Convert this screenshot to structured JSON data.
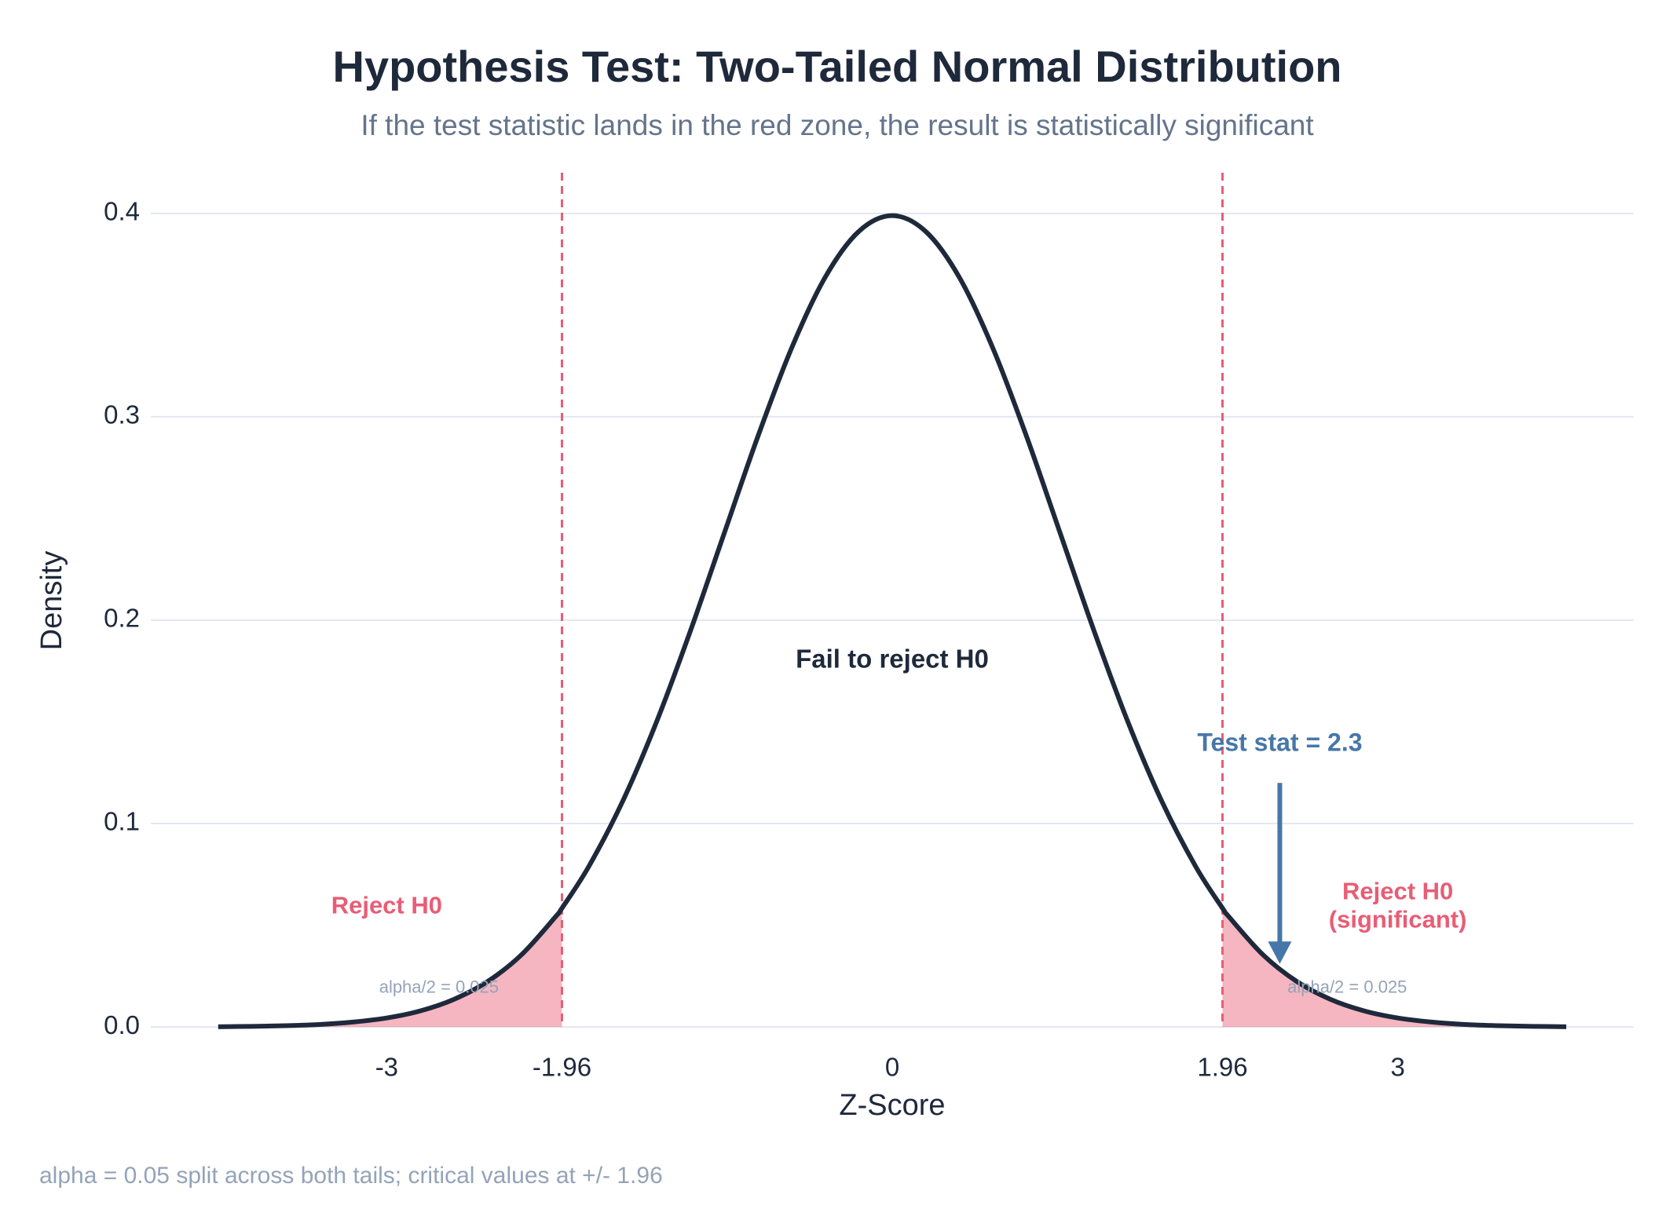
{
  "chart_data": {
    "type": "line",
    "title": "Hypothesis Test: Two-Tailed Normal Distribution",
    "subtitle": "If the test statistic lands in the red zone, the result is statistically significant",
    "x_label": "Z-Score",
    "y_label": "Density",
    "note": "alpha = 0.05 split across both tails; critical values at +/- 1.96",
    "x": [
      -4.0,
      -3.8,
      -3.6,
      -3.4,
      -3.2,
      -3.0,
      -2.8,
      -2.6,
      -2.4,
      -2.2,
      -2.0,
      -1.96,
      -1.8,
      -1.6,
      -1.4,
      -1.2,
      -1.0,
      -0.8,
      -0.6,
      -0.4,
      -0.2,
      0.0,
      0.2,
      0.4,
      0.6,
      0.8,
      1.0,
      1.2,
      1.4,
      1.6,
      1.8,
      1.96,
      2.0,
      2.2,
      2.4,
      2.6,
      2.8,
      3.0,
      3.2,
      3.4,
      3.6,
      3.8,
      4.0
    ],
    "values": [
      0.0001,
      0.0003,
      0.0006,
      0.0012,
      0.0024,
      0.0044,
      0.0079,
      0.0136,
      0.0224,
      0.0355,
      0.054,
      0.0584,
      0.079,
      0.1109,
      0.1497,
      0.1942,
      0.242,
      0.2897,
      0.3332,
      0.3683,
      0.391,
      0.3989,
      0.391,
      0.3683,
      0.3332,
      0.2897,
      0.242,
      0.1942,
      0.1497,
      0.1109,
      0.079,
      0.0584,
      0.054,
      0.0355,
      0.0224,
      0.0136,
      0.0079,
      0.0044,
      0.0024,
      0.0012,
      0.0006,
      0.0003,
      0.0001
    ],
    "color": "#1e293b",
    "critical_values": [
      -1.96,
      1.96
    ],
    "rejection_color": "#e85d75",
    "test_stat": 2.3,
    "test_stat_label": "Test stat = 2.3",
    "test_stat_color": "#4677a8",
    "annotations": {
      "center": "Fail to reject H0",
      "left_reject": "Reject H0",
      "right_reject": [
        "Reject H0",
        "(significant)"
      ],
      "left_alpha": "alpha/2 = 0.025",
      "right_alpha": "alpha/2 = 0.025"
    },
    "xlim": [
      -4.4,
      4.4
    ],
    "ylim": [
      -0.01,
      0.42
    ],
    "xticks": [
      -3,
      -1.96,
      0,
      1.96,
      3
    ],
    "yticks": [
      {
        "value": 0,
        "label": "0.0"
      },
      0.1,
      0.2,
      0.3,
      0.4
    ],
    "grid": true
  }
}
